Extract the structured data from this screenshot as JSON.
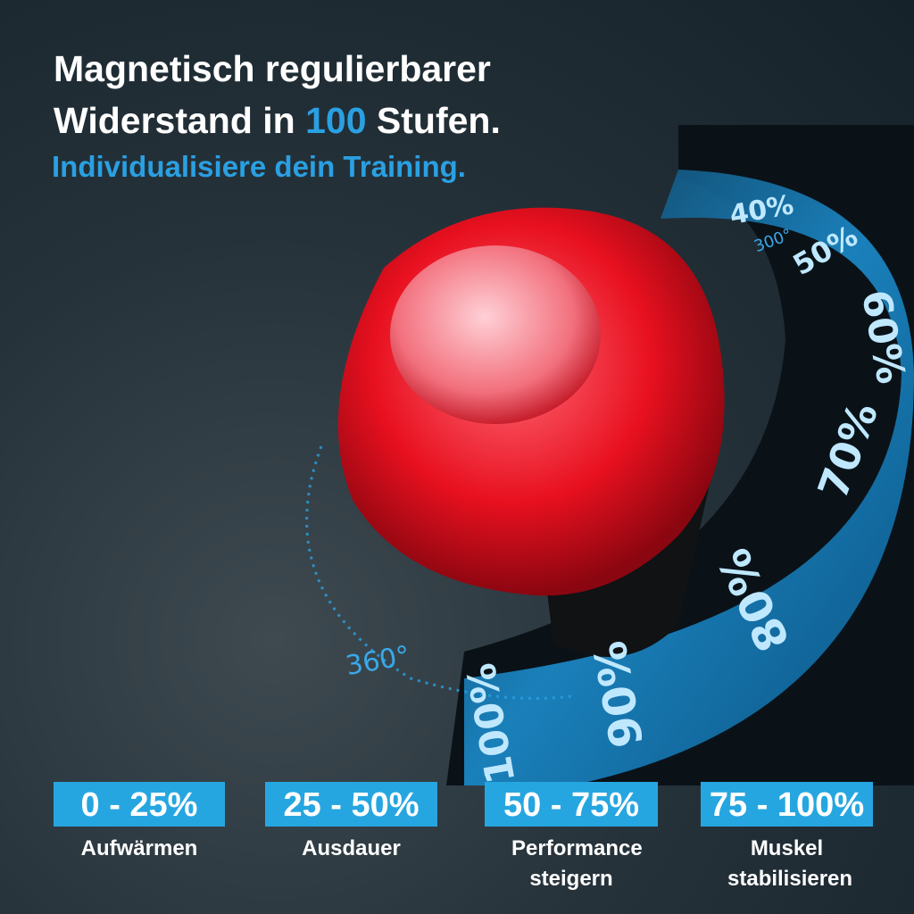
{
  "headline": {
    "line1": "Magnetisch regulierbarer",
    "line2_start": "Widerstand in ",
    "line2_highlight": "100",
    "line2_end": " Stufen."
  },
  "subheadline": "Individualisiere dein Training.",
  "dial_labels": [
    "40%",
    "50%",
    "60%",
    "70%",
    "80%",
    "90%",
    "100%"
  ],
  "angle_labels": [
    "300°",
    "360°"
  ],
  "levels": [
    {
      "range": "0 - 25%",
      "label": "Aufwärmen"
    },
    {
      "range": "25 - 50%",
      "label": "Ausdauer"
    },
    {
      "range": "50 - 75%",
      "label": "Performance steigern"
    },
    {
      "range": "75 - 100%",
      "label": "Muskel stabilisieren"
    }
  ]
}
